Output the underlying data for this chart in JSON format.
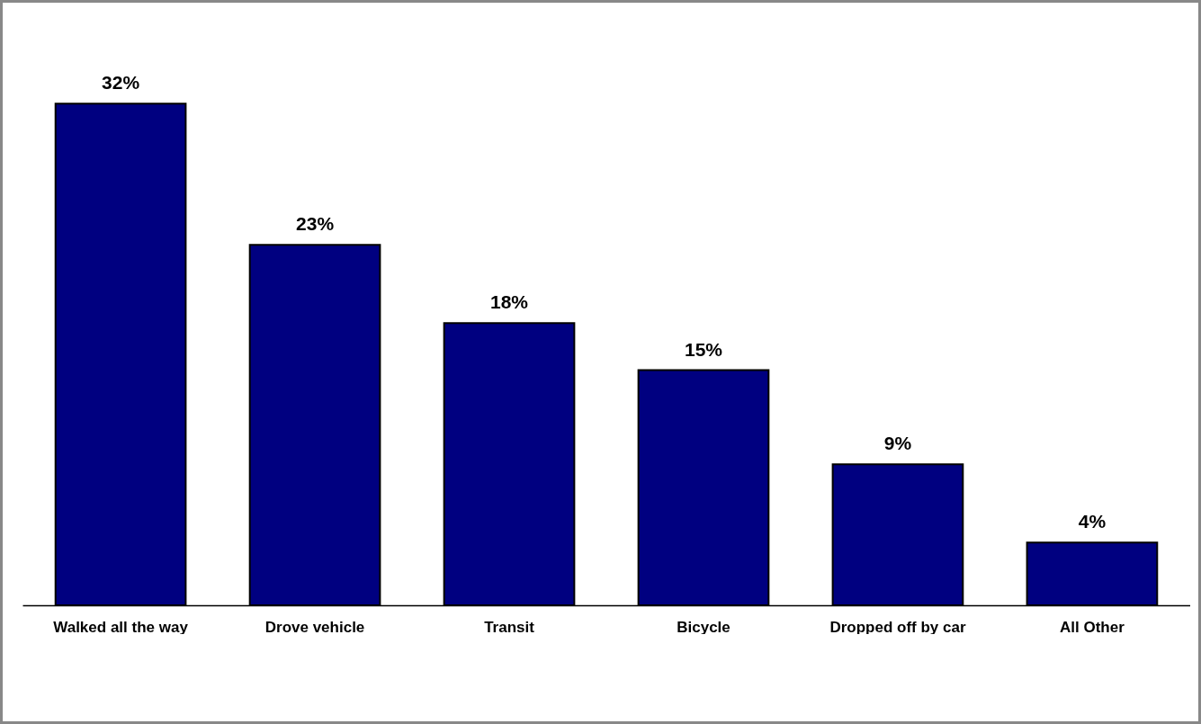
{
  "chart_data": {
    "type": "bar",
    "categories": [
      "Walked all the way",
      "Drove vehicle",
      "Transit",
      "Bicycle",
      "Dropped off by car",
      "All Other"
    ],
    "values": [
      32,
      23,
      18,
      15,
      9,
      4
    ],
    "value_labels": [
      "32%",
      "23%",
      "18%",
      "15%",
      "9%",
      "4%"
    ],
    "color": "#000080"
  }
}
